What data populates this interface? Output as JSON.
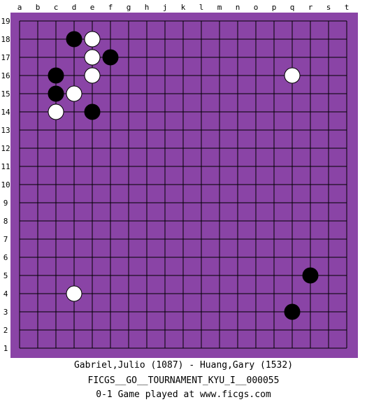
{
  "board": {
    "size": 19,
    "colors": {
      "panel": "#8a44a6",
      "grid": "#000000",
      "coord_text": "#000000",
      "black_stone": "#000000",
      "white_stone": "#ffffff"
    },
    "column_labels": [
      "a",
      "b",
      "c",
      "d",
      "e",
      "f",
      "g",
      "h",
      "j",
      "k",
      "l",
      "m",
      "n",
      "o",
      "p",
      "q",
      "r",
      "s",
      "t"
    ],
    "row_labels": [
      "19",
      "18",
      "17",
      "16",
      "15",
      "14",
      "13",
      "12",
      "11",
      "10",
      "9",
      "8",
      "7",
      "6",
      "5",
      "4",
      "3",
      "2",
      "1"
    ],
    "stones": [
      {
        "color": "black",
        "point": "d18"
      },
      {
        "color": "white",
        "point": "e18"
      },
      {
        "color": "white",
        "point": "e17"
      },
      {
        "color": "black",
        "point": "f17"
      },
      {
        "color": "black",
        "point": "c16"
      },
      {
        "color": "white",
        "point": "e16"
      },
      {
        "color": "white",
        "point": "q16"
      },
      {
        "color": "black",
        "point": "c15"
      },
      {
        "color": "white",
        "point": "d15"
      },
      {
        "color": "white",
        "point": "c14"
      },
      {
        "color": "black",
        "point": "e14"
      },
      {
        "color": "black",
        "point": "r5"
      },
      {
        "color": "white",
        "point": "d4"
      },
      {
        "color": "black",
        "point": "q3"
      }
    ]
  },
  "game_info": {
    "players": "Gabriel,Julio (1087) - Huang,Gary (1532)",
    "event": "FICGS__GO__TOURNAMENT_KYU_I__000055",
    "result_line": "0-1   Game played at www.ficgs.com"
  }
}
